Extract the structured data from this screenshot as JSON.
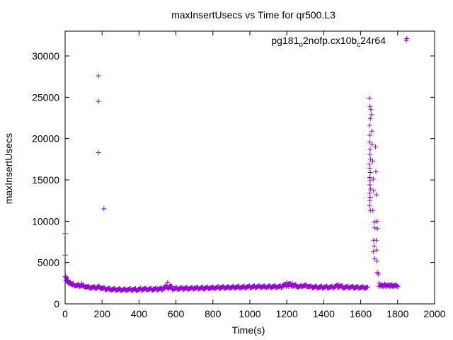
{
  "chart_data": {
    "type": "scatter",
    "title": "maxInsertUsecs vs Time for qr500.L3",
    "xlabel": "Time(s)",
    "ylabel": "maxInsertUsecs",
    "xlim": [
      0,
      2000
    ],
    "ylim": [
      0,
      33000
    ],
    "x_ticks": [
      0,
      200,
      400,
      600,
      800,
      1000,
      1200,
      1400,
      1600,
      1800,
      2000
    ],
    "y_ticks": [
      0,
      5000,
      10000,
      15000,
      20000,
      25000,
      30000
    ],
    "grid": false,
    "legend_position": "top-right",
    "legend": {
      "parts": [
        {
          "text": "pg181",
          "sub": false
        },
        {
          "text": "o",
          "sub": true
        },
        {
          "text": "2nofp.cx10b",
          "sub": false
        },
        {
          "text": "c",
          "sub": true
        },
        {
          "text": "24r64",
          "sub": false
        }
      ]
    },
    "series": [
      {
        "name": "pg181_o2nofp.cx10b_c24r64",
        "color": "#9400d3",
        "marker": "plus",
        "points": [
          [
            0,
            8500
          ],
          [
            0,
            5900
          ],
          [
            2,
            3300
          ],
          [
            4,
            3100
          ],
          [
            6,
            2900
          ],
          [
            8,
            3200
          ],
          [
            10,
            2800
          ],
          [
            12,
            2700
          ],
          [
            15,
            2600
          ],
          [
            20,
            2500
          ],
          [
            25,
            2450
          ],
          [
            30,
            2400
          ],
          [
            35,
            2350
          ],
          [
            40,
            2300
          ],
          [
            50,
            2250
          ],
          [
            60,
            2200
          ],
          [
            70,
            2200
          ],
          [
            80,
            2150
          ],
          [
            90,
            2450
          ],
          [
            100,
            2100
          ],
          [
            110,
            2050
          ],
          [
            120,
            2050
          ],
          [
            130,
            2000
          ],
          [
            140,
            2000
          ],
          [
            150,
            1950
          ],
          [
            160,
            1950
          ],
          [
            170,
            1900
          ],
          [
            178,
            2200
          ],
          [
            180,
            27600
          ],
          [
            180,
            24500
          ],
          [
            180,
            18300
          ],
          [
            190,
            1900
          ],
          [
            200,
            1850
          ],
          [
            210,
            11500
          ],
          [
            220,
            1800
          ],
          [
            240,
            1800
          ],
          [
            260,
            1750
          ],
          [
            280,
            1750
          ],
          [
            300,
            1700
          ],
          [
            320,
            1750
          ],
          [
            340,
            1700
          ],
          [
            360,
            1750
          ],
          [
            380,
            1700
          ],
          [
            400,
            1750
          ],
          [
            420,
            1800
          ],
          [
            440,
            1750
          ],
          [
            460,
            1800
          ],
          [
            480,
            1750
          ],
          [
            500,
            1800
          ],
          [
            520,
            1800
          ],
          [
            540,
            1850
          ],
          [
            555,
            2600
          ],
          [
            560,
            1800
          ],
          [
            580,
            1850
          ],
          [
            600,
            1850
          ],
          [
            620,
            1850
          ],
          [
            640,
            1900
          ],
          [
            660,
            1850
          ],
          [
            680,
            1900
          ],
          [
            700,
            1900
          ],
          [
            720,
            1900
          ],
          [
            740,
            1900
          ],
          [
            760,
            1950
          ],
          [
            780,
            1900
          ],
          [
            800,
            1950
          ],
          [
            820,
            1950
          ],
          [
            840,
            2000
          ],
          [
            860,
            1950
          ],
          [
            880,
            2000
          ],
          [
            900,
            2000
          ],
          [
            920,
            2000
          ],
          [
            940,
            2050
          ],
          [
            960,
            2000
          ],
          [
            980,
            2050
          ],
          [
            1000,
            2050
          ],
          [
            1020,
            2050
          ],
          [
            1040,
            2100
          ],
          [
            1060,
            2050
          ],
          [
            1080,
            2100
          ],
          [
            1100,
            2050
          ],
          [
            1120,
            2100
          ],
          [
            1140,
            2050
          ],
          [
            1160,
            2100
          ],
          [
            1180,
            2050
          ],
          [
            1200,
            2600
          ],
          [
            1210,
            2100
          ],
          [
            1230,
            2500
          ],
          [
            1240,
            2100
          ],
          [
            1260,
            2050
          ],
          [
            1280,
            2100
          ],
          [
            1300,
            2300
          ],
          [
            1320,
            2050
          ],
          [
            1340,
            2050
          ],
          [
            1360,
            2050
          ],
          [
            1380,
            2000
          ],
          [
            1400,
            2050
          ],
          [
            1420,
            2000
          ],
          [
            1440,
            2050
          ],
          [
            1460,
            2000
          ],
          [
            1480,
            2300
          ],
          [
            1500,
            2000
          ],
          [
            1520,
            2000
          ],
          [
            1540,
            2050
          ],
          [
            1560,
            2000
          ],
          [
            1580,
            2000
          ],
          [
            1600,
            2000
          ],
          [
            1620,
            1950
          ],
          [
            1635,
            2000
          ],
          [
            1648,
            24900
          ],
          [
            1650,
            23900
          ],
          [
            1652,
            22400
          ],
          [
            1648,
            21600
          ],
          [
            1650,
            20400
          ],
          [
            1649,
            19600
          ],
          [
            1651,
            18700
          ],
          [
            1650,
            18100
          ],
          [
            1653,
            17500
          ],
          [
            1648,
            16900
          ],
          [
            1650,
            16400
          ],
          [
            1652,
            15900
          ],
          [
            1649,
            15300
          ],
          [
            1651,
            14900
          ],
          [
            1650,
            14400
          ],
          [
            1653,
            13900
          ],
          [
            1649,
            13400
          ],
          [
            1651,
            12900
          ],
          [
            1650,
            12500
          ],
          [
            1648,
            11900
          ],
          [
            1652,
            11300
          ],
          [
            1655,
            23500
          ],
          [
            1658,
            22900
          ],
          [
            1660,
            20900
          ],
          [
            1662,
            19300
          ],
          [
            1665,
            17300
          ],
          [
            1668,
            15100
          ],
          [
            1670,
            13700
          ],
          [
            1666,
            11300
          ],
          [
            1672,
            9900
          ],
          [
            1675,
            9200
          ],
          [
            1670,
            7700
          ],
          [
            1673,
            7000
          ],
          [
            1668,
            6300
          ],
          [
            1675,
            5500
          ],
          [
            1680,
            19000
          ],
          [
            1682,
            16000
          ],
          [
            1685,
            13200
          ],
          [
            1688,
            10000
          ],
          [
            1690,
            9100
          ],
          [
            1684,
            7700
          ],
          [
            1686,
            6500
          ],
          [
            1688,
            5200
          ],
          [
            1690,
            3800
          ],
          [
            1695,
            3600
          ],
          [
            1700,
            2500
          ],
          [
            1710,
            2300
          ],
          [
            1720,
            2200
          ],
          [
            1730,
            2400
          ],
          [
            1740,
            2300
          ],
          [
            1750,
            2200
          ],
          [
            1760,
            2300
          ],
          [
            1770,
            2200
          ],
          [
            1780,
            2100
          ],
          [
            1790,
            2200
          ],
          [
            1800,
            2100
          ],
          [
            1850,
            32100
          ]
        ]
      }
    ]
  }
}
